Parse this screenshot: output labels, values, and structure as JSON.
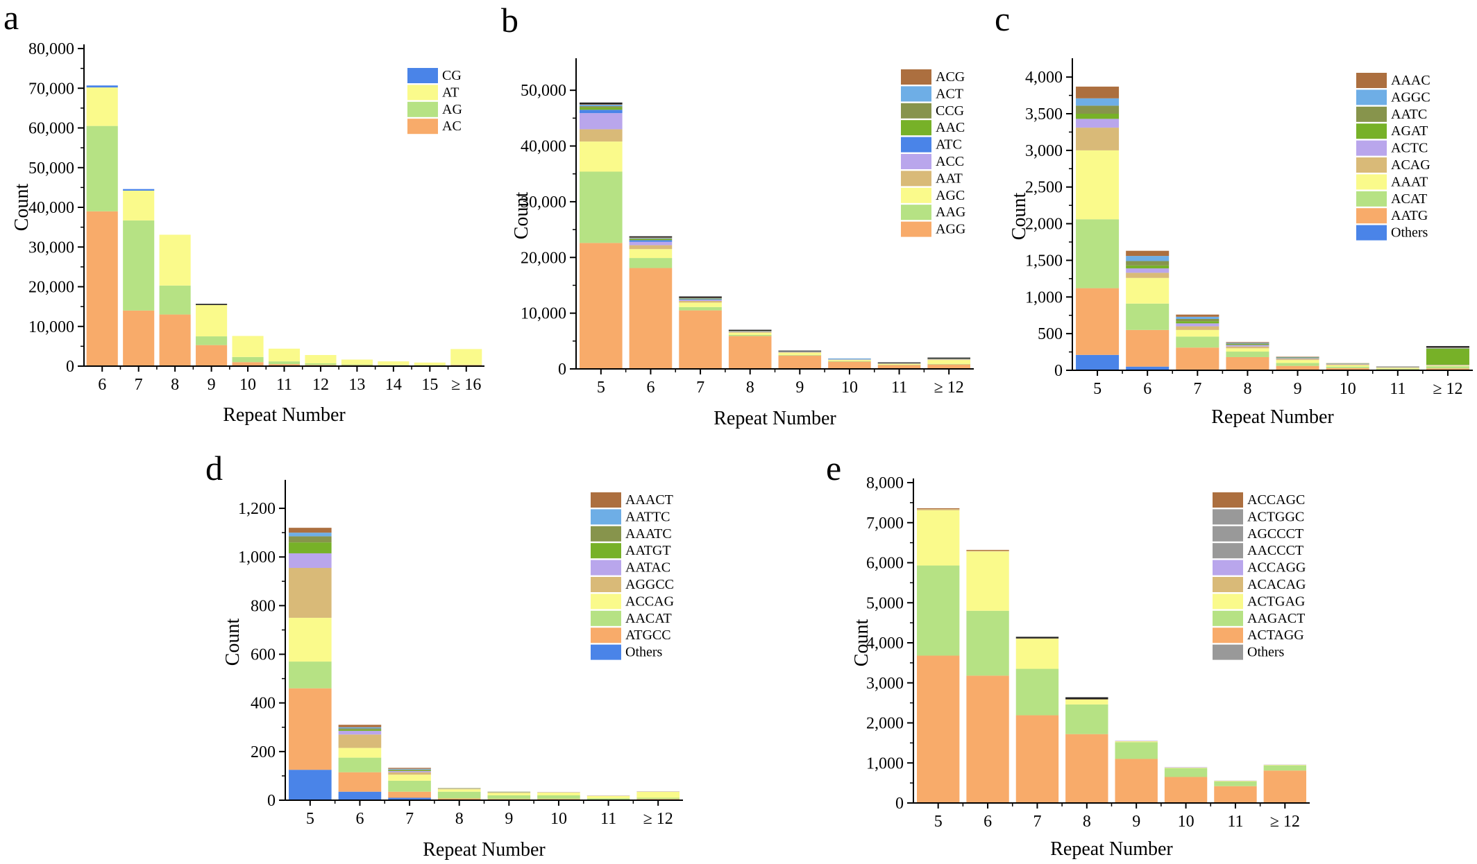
{
  "colors": {
    "orange": "#F8AB6A",
    "lightgreen": "#B6E284",
    "yellow": "#FAFA8B",
    "blue": "#4A84E8",
    "tan": "#D9BA78",
    "lavender": "#B9A6EC",
    "green": "#77B128",
    "olive": "#87944C",
    "skyblue": "#6EAEE6",
    "brown": "#AC6F3F",
    "black": "#222222"
  },
  "chart_data": [
    {
      "panel": "a",
      "type": "bar",
      "stacked": true,
      "xlabel": "Repeat Number",
      "ylabel": "Count",
      "ylim": [
        0,
        80000
      ],
      "yticks": [
        0,
        10000,
        20000,
        30000,
        40000,
        50000,
        60000,
        70000,
        80000
      ],
      "ytick_labels": [
        "0",
        "10,000",
        "20,000",
        "30,000",
        "40,000",
        "50,000",
        "60,000",
        "70,000",
        "80,000"
      ],
      "categories": [
        "6",
        "7",
        "8",
        "9",
        "10",
        "11",
        "12",
        "13",
        "14",
        "15",
        "≥ 16"
      ],
      "legend_position": "top-right",
      "legend_top_down": [
        "CG",
        "AT",
        "AG",
        "AC"
      ],
      "series": [
        {
          "name": "AC",
          "color": "#F8AB6A",
          "values": [
            39000,
            14000,
            13000,
            5300,
            1000,
            500,
            300,
            250,
            200,
            150,
            300
          ]
        },
        {
          "name": "AG",
          "color": "#B6E284",
          "values": [
            21500,
            22700,
            7300,
            2200,
            1300,
            700,
            400,
            200,
            100,
            100,
            100
          ]
        },
        {
          "name": "AT",
          "color": "#FAFA8B",
          "values": [
            9700,
            7500,
            12800,
            7900,
            5300,
            3200,
            2100,
            1200,
            900,
            650,
            3900
          ]
        },
        {
          "name": "CG",
          "color": "#4A84E8",
          "values": [
            500,
            400,
            0,
            0,
            0,
            0,
            0,
            0,
            0,
            0,
            0
          ]
        },
        {
          "name": "",
          "color": "#222222",
          "values": [
            0,
            0,
            0,
            300,
            0,
            0,
            0,
            0,
            0,
            0,
            0
          ]
        }
      ]
    },
    {
      "panel": "b",
      "type": "bar",
      "stacked": true,
      "xlabel": "Repeat Number",
      "ylabel": "Count",
      "ylim": [
        0,
        55000
      ],
      "yticks": [
        0,
        10000,
        20000,
        30000,
        40000,
        50000
      ],
      "ytick_labels": [
        "0",
        "10,000",
        "20,000",
        "30,000",
        "40,000",
        "50,000"
      ],
      "categories": [
        "5",
        "6",
        "7",
        "8",
        "9",
        "10",
        "11",
        "≥ 12"
      ],
      "legend_position": "top-right",
      "legend_top_down": [
        "ACG",
        "ACT",
        "CCG",
        "AAC",
        "ATC",
        "ACC",
        "AAT",
        "AGC",
        "AAG",
        "AGG"
      ],
      "series": [
        {
          "name": "AGG",
          "color": "#F8AB6A",
          "values": [
            22600,
            18100,
            10500,
            5900,
            2400,
            1300,
            700,
            800
          ]
        },
        {
          "name": "AAG",
          "color": "#B6E284",
          "values": [
            12800,
            1800,
            600,
            200,
            100,
            100,
            50,
            100
          ]
        },
        {
          "name": "AGC",
          "color": "#FAFA8B",
          "values": [
            5400,
            1600,
            800,
            400,
            400,
            200,
            150,
            700
          ]
        },
        {
          "name": "AAT",
          "color": "#D9BA78",
          "values": [
            2200,
            700,
            300,
            150,
            100,
            50,
            50,
            100
          ]
        },
        {
          "name": "ACC",
          "color": "#B9A6EC",
          "values": [
            2900,
            600,
            200,
            50,
            50,
            30,
            20,
            30
          ]
        },
        {
          "name": "ATC",
          "color": "#4A84E8",
          "values": [
            600,
            300,
            100,
            30,
            20,
            20,
            10,
            20
          ]
        },
        {
          "name": "AAC",
          "color": "#77B128",
          "values": [
            400,
            200,
            100,
            30,
            20,
            10,
            10,
            20
          ]
        },
        {
          "name": "CCG",
          "color": "#87944C",
          "values": [
            250,
            100,
            50,
            20,
            20,
            10,
            10,
            20
          ]
        },
        {
          "name": "ACT",
          "color": "#6EAEE6",
          "values": [
            250,
            100,
            50,
            20,
            20,
            150,
            10,
            20
          ]
        },
        {
          "name": "ACG",
          "color": "#AC6F3F",
          "values": [
            100,
            100,
            50,
            20,
            20,
            10,
            10,
            20
          ]
        },
        {
          "name": "",
          "color": "#222222",
          "values": [
            300,
            200,
            250,
            200,
            130,
            0,
            150,
            200
          ]
        }
      ]
    },
    {
      "panel": "c",
      "type": "bar",
      "stacked": true,
      "xlabel": "Repeat Number",
      "ylabel": "Count",
      "ylim": [
        0,
        4200
      ],
      "yticks": [
        0,
        500,
        1000,
        1500,
        2000,
        2500,
        3000,
        3500,
        4000
      ],
      "ytick_labels": [
        "0",
        "500",
        "1,000",
        "1,500",
        "2,000",
        "2,500",
        "3,000",
        "3,500",
        "4,000"
      ],
      "categories": [
        "5",
        "6",
        "7",
        "8",
        "9",
        "10",
        "11",
        "≥ 12"
      ],
      "legend_position": "top-right",
      "legend_top_down": [
        "AAAC",
        "AGGC",
        "AATC",
        "AGAT",
        "ACTC",
        "ACAG",
        "AAAT",
        "ACAT",
        "AATG",
        "Others"
      ],
      "series": [
        {
          "name": "Others",
          "color": "#4A84E8",
          "values": [
            210,
            50,
            10,
            5,
            5,
            2,
            2,
            0
          ]
        },
        {
          "name": "AATG",
          "color": "#F8AB6A",
          "values": [
            910,
            500,
            300,
            175,
            55,
            28,
            10,
            25
          ]
        },
        {
          "name": "ACAT",
          "color": "#B6E284",
          "values": [
            940,
            360,
            150,
            75,
            40,
            20,
            10,
            30
          ]
        },
        {
          "name": "AAAT",
          "color": "#FAFA8B",
          "values": [
            940,
            350,
            90,
            45,
            40,
            20,
            10,
            10
          ]
        },
        {
          "name": "ACAG",
          "color": "#D9BA78",
          "values": [
            310,
            70,
            50,
            25,
            15,
            10,
            5,
            5
          ]
        },
        {
          "name": "ACTC",
          "color": "#B9A6EC",
          "values": [
            120,
            60,
            40,
            20,
            10,
            5,
            5,
            5
          ]
        },
        {
          "name": "AGAT",
          "color": "#77B128",
          "values": [
            70,
            40,
            30,
            10,
            5,
            3,
            3,
            220
          ]
        },
        {
          "name": "AATC",
          "color": "#87944C",
          "values": [
            110,
            60,
            30,
            10,
            5,
            3,
            3,
            5
          ]
        },
        {
          "name": "AGGC",
          "color": "#6EAEE6",
          "values": [
            100,
            70,
            30,
            10,
            5,
            3,
            3,
            5
          ]
        },
        {
          "name": "AAAC",
          "color": "#AC6F3F",
          "values": [
            160,
            70,
            30,
            10,
            5,
            3,
            3,
            5
          ]
        },
        {
          "name": "",
          "color": "#222222",
          "values": [
            0,
            0,
            0,
            0,
            0,
            0,
            0,
            20
          ]
        }
      ]
    },
    {
      "panel": "d",
      "type": "bar",
      "stacked": true,
      "xlabel": "Repeat Number",
      "ylabel": "Count",
      "ylim": [
        0,
        1300
      ],
      "yticks": [
        0,
        200,
        400,
        600,
        800,
        1000,
        1200
      ],
      "ytick_labels": [
        "0",
        "200",
        "400",
        "600",
        "800",
        "1,000",
        "1,200"
      ],
      "categories": [
        "5",
        "6",
        "7",
        "8",
        "9",
        "10",
        "11",
        "≥ 12"
      ],
      "legend_position": "top-right",
      "legend_top_down": [
        "AAACT",
        "AATTC",
        "AAATC",
        "AATGT",
        "AATAC",
        "AGGCC",
        "ACCAG",
        "AACAT",
        "ATGCC",
        "Others"
      ],
      "series": [
        {
          "name": "Others",
          "color": "#4A84E8",
          "values": [
            125,
            35,
            10,
            2,
            2,
            2,
            1,
            2
          ]
        },
        {
          "name": "ATGCC",
          "color": "#F8AB6A",
          "values": [
            335,
            80,
            25,
            5,
            3,
            3,
            2,
            3
          ]
        },
        {
          "name": "AACAT",
          "color": "#B6E284",
          "values": [
            110,
            60,
            45,
            28,
            15,
            15,
            5,
            5
          ]
        },
        {
          "name": "ACCAG",
          "color": "#FAFA8B",
          "values": [
            180,
            40,
            25,
            10,
            10,
            12,
            10,
            25
          ]
        },
        {
          "name": "AGGCC",
          "color": "#D9BA78",
          "values": [
            205,
            55,
            10,
            2,
            2,
            1,
            1,
            1
          ]
        },
        {
          "name": "AATAC",
          "color": "#B9A6EC",
          "values": [
            60,
            15,
            5,
            1,
            1,
            1,
            1,
            1
          ]
        },
        {
          "name": "AATGT",
          "color": "#77B128",
          "values": [
            45,
            5,
            3,
            1,
            1,
            0,
            0,
            0
          ]
        },
        {
          "name": "AAATC",
          "color": "#87944C",
          "values": [
            25,
            5,
            3,
            1,
            1,
            0,
            0,
            0
          ]
        },
        {
          "name": "AATTC",
          "color": "#6EAEE6",
          "values": [
            15,
            5,
            3,
            0,
            0,
            0,
            0,
            0
          ]
        },
        {
          "name": "AAACT",
          "color": "#AC6F3F",
          "values": [
            20,
            10,
            4,
            0,
            0,
            0,
            0,
            0
          ]
        }
      ]
    },
    {
      "panel": "e",
      "type": "bar",
      "stacked": true,
      "xlabel": "Repeat Number",
      "ylabel": "Count",
      "ylim": [
        0,
        8000
      ],
      "yticks": [
        0,
        1000,
        2000,
        3000,
        4000,
        5000,
        6000,
        7000,
        8000
      ],
      "ytick_labels": [
        "0",
        "1,000",
        "2,000",
        "3,000",
        "4,000",
        "5,000",
        "6,000",
        "7,000",
        "8,000"
      ],
      "categories": [
        "5",
        "6",
        "7",
        "8",
        "9",
        "10",
        "11",
        "≥ 12"
      ],
      "legend_position": "top-right",
      "legend_top_down": [
        "ACCAGC",
        "ACTGGC",
        "AGCCCT",
        "AACCCT",
        "ACCAGG",
        "ACACAG",
        "ACTGAG",
        "AAGACT",
        "ACTAGG",
        "Others"
      ],
      "series": [
        {
          "name": "ACTAGG",
          "color": "#F8AB6A",
          "values": [
            3680,
            3180,
            2190,
            1720,
            1100,
            650,
            420,
            810
          ]
        },
        {
          "name": "AAGACT",
          "color": "#B6E284",
          "values": [
            2250,
            1620,
            1160,
            740,
            420,
            220,
            120,
            130
          ]
        },
        {
          "name": "ACTGAG",
          "color": "#FAFA8B",
          "values": [
            1380,
            1480,
            750,
            120,
            20,
            10,
            10,
            10
          ]
        },
        {
          "name": "ACACAG",
          "color": "#D9BA78",
          "values": [
            30,
            20,
            10,
            10,
            5,
            5,
            5,
            5
          ]
        },
        {
          "name": "ACCAGG",
          "color": "#B9A6EC",
          "values": [
            0,
            0,
            0,
            0,
            10,
            10,
            5,
            5
          ]
        },
        {
          "name": "ACCAGC",
          "color": "#AC6F3F",
          "values": [
            20,
            20,
            0,
            0,
            0,
            0,
            0,
            0
          ]
        },
        {
          "name": "",
          "color": "#222222",
          "values": [
            0,
            0,
            40,
            50,
            0,
            0,
            0,
            0
          ]
        }
      ]
    }
  ]
}
